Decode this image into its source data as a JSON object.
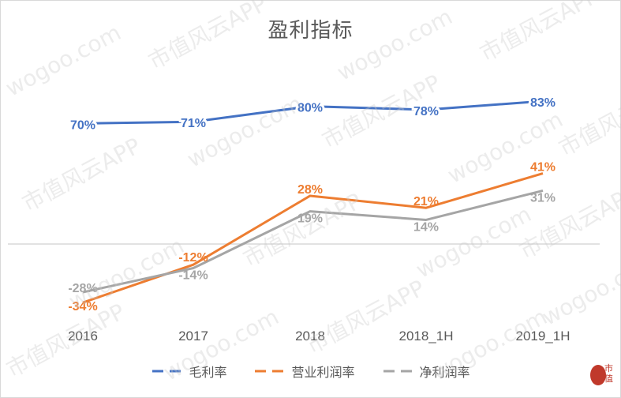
{
  "chart_data": {
    "type": "line",
    "title": "盈利指标",
    "categories": [
      "2016",
      "2017",
      "2018",
      "2018_1H",
      "2019_1H"
    ],
    "series": [
      {
        "name": "毛利率",
        "color": "#4472c4",
        "values": [
          70,
          71,
          80,
          78,
          83
        ],
        "labels": [
          "70%",
          "71%",
          "80%",
          "78%",
          "83%"
        ]
      },
      {
        "name": "营业利润率",
        "color": "#ed7d31",
        "values": [
          -34,
          -12,
          28,
          21,
          41
        ],
        "labels": [
          "-34%",
          "-12%",
          "28%",
          "21%",
          "41%"
        ]
      },
      {
        "name": "净利润率",
        "color": "#a5a5a5",
        "values": [
          -28,
          -14,
          19,
          14,
          31
        ],
        "labels": [
          "-28%",
          "-14%",
          "19%",
          "14%",
          "31%"
        ]
      }
    ],
    "xlabel": "",
    "ylabel": "",
    "unit": "%",
    "grid": false,
    "zero_line": true,
    "legend_position": "bottom"
  },
  "watermark": {
    "text_a": "wogoo.com",
    "text_b": "市值风云APP"
  },
  "logo": {
    "text": "市值"
  }
}
